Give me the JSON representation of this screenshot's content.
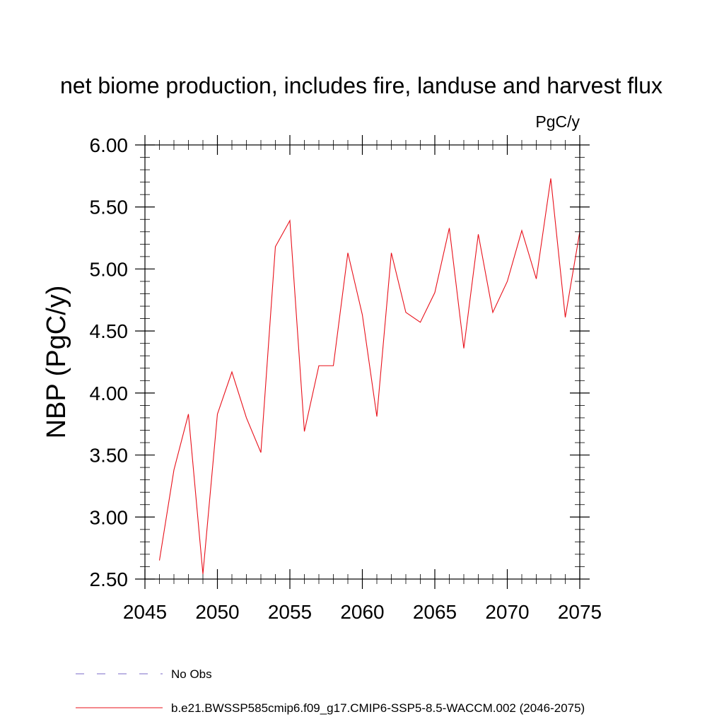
{
  "chart_data": {
    "type": "line",
    "title": "net biome production, includes fire, landuse and harvest flux",
    "units_label": "PgC/y",
    "xlabel": "",
    "ylabel": "NBP  (PgC/y)",
    "xlim": [
      2045,
      2075
    ],
    "ylim": [
      2.5,
      6.0
    ],
    "x_ticks": [
      "2045",
      "2050",
      "2055",
      "2060",
      "2065",
      "2070",
      "2075"
    ],
    "y_ticks": [
      "2.50",
      "3.00",
      "3.50",
      "4.00",
      "4.50",
      "5.00",
      "5.50",
      "6.00"
    ],
    "grid": false,
    "series": [
      {
        "name": "b.e21.BWSSP585cmip6.f09_g17.CMIP6-SSP5-8.5-WACCM.002 (2046-2075)",
        "color": "#e8101a",
        "dash": "solid",
        "x": [
          2046,
          2047,
          2048,
          2049,
          2050,
          2051,
          2052,
          2053,
          2054,
          2055,
          2056,
          2057,
          2058,
          2059,
          2060,
          2061,
          2062,
          2063,
          2064,
          2065,
          2066,
          2067,
          2068,
          2069,
          2070,
          2071,
          2072,
          2073,
          2074,
          2075
        ],
        "y": [
          2.65,
          3.38,
          3.83,
          2.54,
          3.83,
          4.17,
          3.8,
          3.52,
          5.18,
          5.39,
          3.69,
          4.22,
          4.22,
          5.13,
          4.63,
          3.81,
          5.13,
          4.65,
          4.57,
          4.81,
          5.33,
          4.36,
          5.28,
          4.65,
          4.9,
          5.31,
          4.92,
          5.73,
          4.61,
          5.3
        ]
      }
    ],
    "legend": [
      {
        "label": "No Obs",
        "color": "#7b68c8",
        "dash": "dashed"
      },
      {
        "label": "b.e21.BWSSP585cmip6.f09_g17.CMIP6-SSP5-8.5-WACCM.002 (2046-2075)",
        "color": "#e8101a",
        "dash": "solid"
      }
    ]
  }
}
